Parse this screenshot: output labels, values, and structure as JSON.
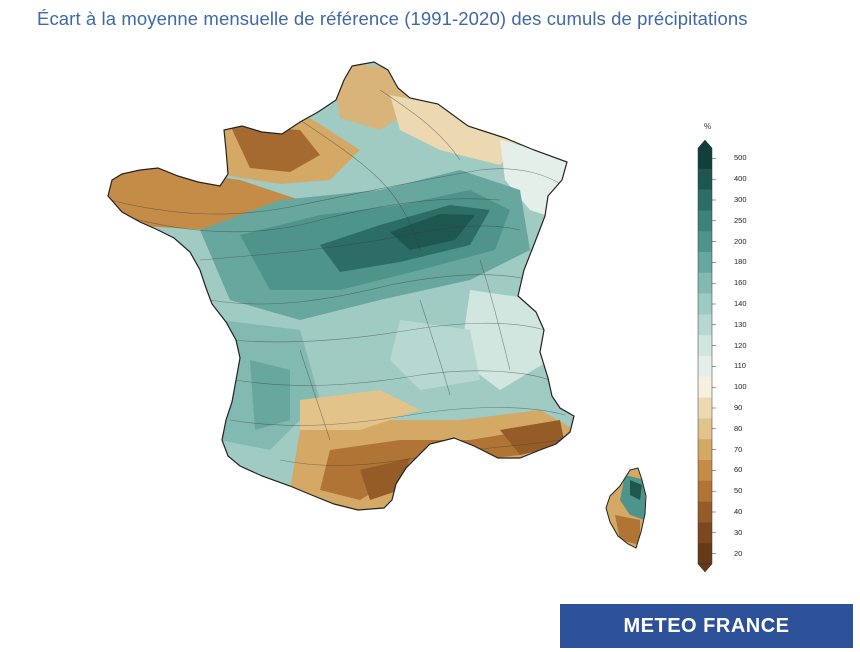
{
  "title": "Écart à la moyenne mensuelle de référence (1991-2020) des cumuls de précipitations",
  "legend": {
    "unit": "%",
    "labels": [
      "500",
      "400",
      "300",
      "250",
      "200",
      "180",
      "160",
      "140",
      "130",
      "120",
      "110",
      "100",
      "90",
      "80",
      "70",
      "60",
      "50",
      "40",
      "30",
      "20"
    ],
    "colors": [
      "#10403a",
      "#1d574f",
      "#2c6d66",
      "#3d8178",
      "#4f948b",
      "#67a79e",
      "#82b9b1",
      "#9dcac2",
      "#b7d8d1",
      "#d0e6df",
      "#e4efe9",
      "#f6f0df",
      "#ecd9b2",
      "#e2c38a",
      "#d4a865",
      "#c48c47",
      "#b07435",
      "#965c28",
      "#7c481f",
      "#643a17"
    ]
  },
  "brand": {
    "text": "METEO FRANCE"
  }
}
